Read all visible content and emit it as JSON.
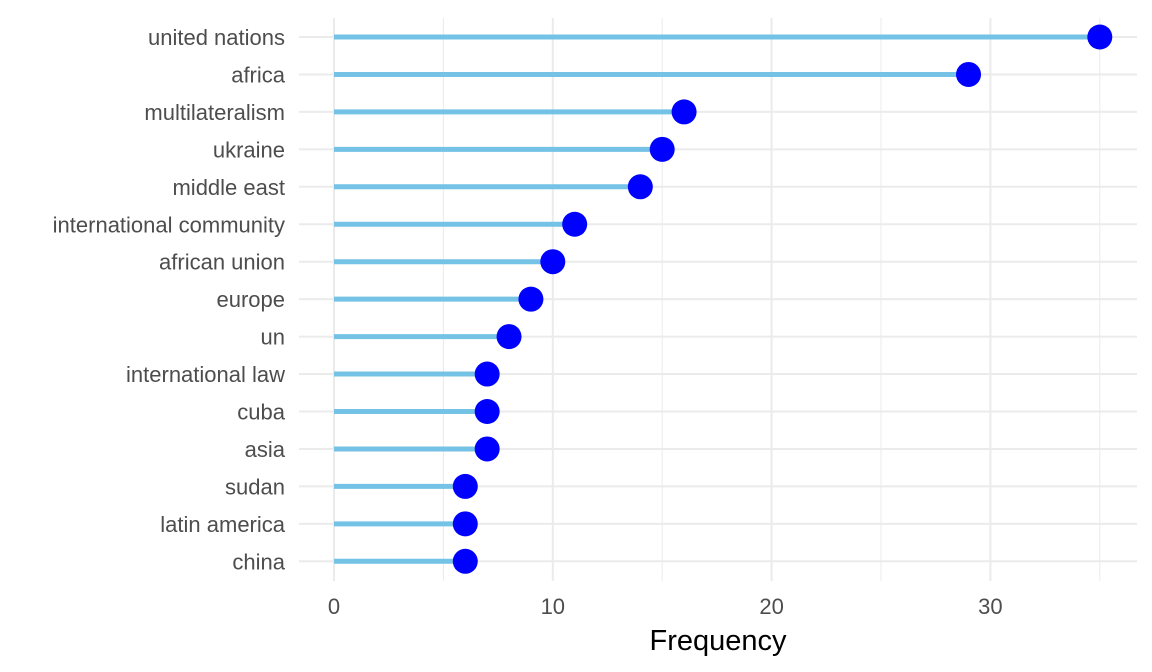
{
  "chart_data": {
    "type": "lollipop",
    "orientation": "horizontal",
    "categories": [
      "united nations",
      "africa",
      "multilateralism",
      "ukraine",
      "middle east",
      "international community",
      "african union",
      "europe",
      "un",
      "international law",
      "cuba",
      "asia",
      "sudan",
      "latin america",
      "china"
    ],
    "values": [
      35,
      29,
      16,
      15,
      14,
      11,
      10,
      9,
      8,
      7,
      7,
      7,
      6,
      6,
      6
    ],
    "title": "",
    "xlabel": "Frequency",
    "ylabel": "",
    "xlim": [
      -1.6,
      36.7
    ],
    "x_ticks": [
      0,
      10,
      20,
      30
    ],
    "x_tick_labels": [
      "0",
      "10",
      "20",
      "30"
    ],
    "grid": true,
    "legend": "none",
    "colors": {
      "stem": "#74c2e6",
      "point": "#0000ff",
      "grid": "#ebebeb",
      "tick_text": "#4d4d4d",
      "axis_title": "#000000"
    }
  }
}
